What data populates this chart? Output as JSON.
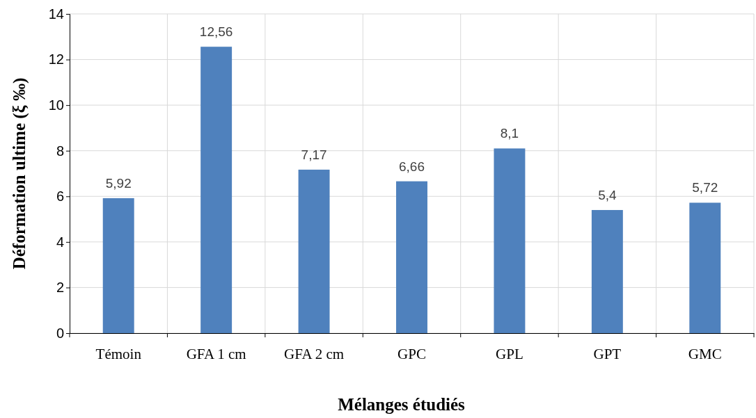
{
  "chart_data": {
    "type": "bar",
    "xlabel": "Mélanges étudiés",
    "ylabel": "Déformation ultime (ξ ‰)",
    "categories": [
      "Témoin",
      "GFA 1 cm",
      "GFA 2 cm",
      "GPC",
      "GPL",
      "GPT",
      "GMC"
    ],
    "values": [
      5.92,
      12.56,
      7.17,
      6.66,
      8.1,
      5.4,
      5.72
    ],
    "color": "#4f81bd",
    "ylim": [
      0,
      14
    ],
    "yticks": [
      0,
      2,
      4,
      6,
      8,
      10,
      12,
      14
    ],
    "grid": true,
    "value_labels": [
      "5,92",
      "12,56",
      "7,17",
      "6,66",
      "8,1",
      "5,4",
      "5,72"
    ]
  }
}
